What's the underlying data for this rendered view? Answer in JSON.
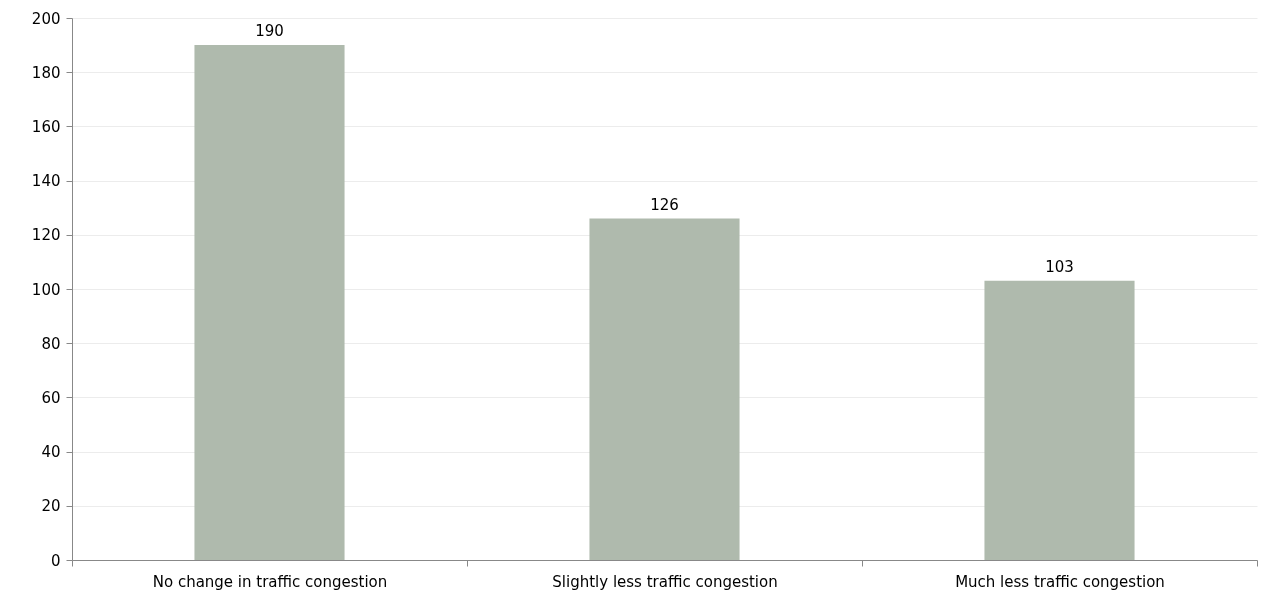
{
  "chart_data": {
    "type": "bar",
    "categories": [
      "No change in traffic congestion",
      "Slightly less traffic congestion",
      "Much less traffic congestion"
    ],
    "values": [
      190,
      126,
      103
    ],
    "color": "#afbaad",
    "ylim": [
      0,
      200
    ],
    "yticks": [
      0,
      20,
      40,
      60,
      80,
      100,
      120,
      140,
      160,
      180,
      200
    ],
    "grid": "y",
    "data_labels": true
  }
}
